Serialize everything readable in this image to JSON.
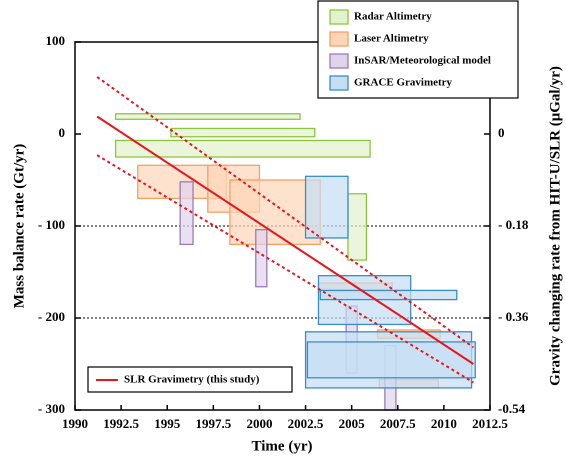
{
  "chart_data": {
    "type": "box-range",
    "x_label": "Time (yr)",
    "y_label": "Mass balance rate (Gt/yr)",
    "y2_label": "Gravity changing rate from HIT-U/SLR (μGal/yr)",
    "xlim": [
      1990,
      2012.5
    ],
    "xticks": [
      1990,
      1992.5,
      1995,
      1997.5,
      2000,
      2002.5,
      2005,
      2007.5,
      2010,
      2012.5
    ],
    "ylim": [
      -300,
      100
    ],
    "yticks": [
      {
        "value": -300,
        "label": "- 300"
      },
      {
        "value": -200,
        "label": "- 200"
      },
      {
        "value": -100,
        "label": "- 100"
      },
      0,
      100
    ],
    "y2lim": [
      -0.54,
      0.18
    ],
    "y2ticks": [
      {
        "value": -0.54,
        "label": "-0.54"
      },
      {
        "value": -0.36,
        "label": "- 0.36"
      },
      {
        "value": -0.18,
        "label": "- 0.18"
      },
      0
    ],
    "grid": true,
    "series": [
      {
        "name": "Radar Altimetry",
        "color": "#8cc63f",
        "fill": "#e3f1cc",
        "x": [
          [
            1992.2,
            2002.2
          ],
          [
            1995.2,
            2003.0
          ],
          [
            1992.2,
            2006.0
          ],
          [
            2004.8,
            2005.8
          ]
        ],
        "values": [
          [
            16,
            22
          ],
          [
            -3,
            6
          ],
          [
            -25,
            -7
          ],
          [
            -137,
            -65
          ]
        ]
      },
      {
        "name": "Laser Altimetry",
        "color": "#f4a261",
        "fill": "#fdd6b8",
        "x": [
          [
            1993.4,
            1998.2
          ],
          [
            1997.2,
            2000.0
          ],
          [
            1998.4,
            2003.3
          ],
          [
            2003.2,
            2007.2
          ],
          [
            2006.4,
            2009.8
          ],
          [
            2006.5,
            2009.7
          ]
        ],
        "values": [
          [
            -70,
            -34
          ],
          [
            -85,
            -34
          ],
          [
            -120,
            -50
          ],
          [
            -172,
            -162
          ],
          [
            -222,
            -213
          ],
          [
            -276,
            -267
          ]
        ]
      },
      {
        "name": "InSAR/Meteorological model",
        "color": "#9b7cb6",
        "fill": "#e0d3ec",
        "x": [
          [
            1995.7,
            1996.4
          ],
          [
            1999.8,
            2000.4
          ],
          [
            2004.7,
            2005.3
          ],
          [
            2006.8,
            2007.4
          ]
        ],
        "values": [
          [
            -120,
            -52
          ],
          [
            -166,
            -104
          ],
          [
            -260,
            -187
          ],
          [
            -300,
            -230
          ]
        ]
      },
      {
        "name": "GRACE Gravimetry",
        "color": "#3a8dc8",
        "fill": "#c4def3",
        "x": [
          [
            2002.5,
            2004.8
          ],
          [
            2003.2,
            2008.2
          ],
          [
            2003.3,
            2010.7
          ],
          [
            2002.5,
            2011.5
          ],
          [
            2002.6,
            2011.7
          ]
        ],
        "values": [
          [
            -113,
            -46
          ],
          [
            -207,
            -154
          ],
          [
            -180,
            -170
          ],
          [
            -276,
            -215
          ],
          [
            -265,
            -226
          ]
        ]
      }
    ],
    "line": {
      "name": "SLR Gravimetry (this study)",
      "color": "#e8141b",
      "x": [
        1991.2,
        2011.6
      ],
      "values": [
        19,
        -250
      ],
      "upper": [
        62,
        -232
      ],
      "lower": [
        -23,
        -270
      ]
    }
  }
}
